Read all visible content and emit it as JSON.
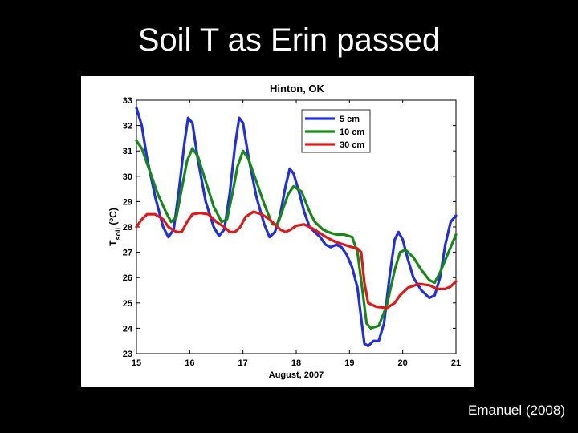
{
  "slide": {
    "title": "Soil T as Erin passed",
    "citation": "Emanuel (2008)"
  },
  "chart_data": {
    "type": "line",
    "title": "Hinton, OK",
    "xlabel": "August, 2007",
    "ylabel": {
      "main": "T",
      "subscript": "soil",
      "units_prefix": " (",
      "units_sup": "o",
      "units_suffix": "C)"
    },
    "xlim": [
      15,
      21
    ],
    "ylim": [
      23,
      33
    ],
    "xticks": [
      15,
      16,
      17,
      18,
      19,
      20,
      21
    ],
    "yticks": [
      23,
      24,
      25,
      26,
      27,
      28,
      29,
      30,
      31,
      32,
      33
    ],
    "legend_position": "top-right",
    "series": [
      {
        "name": "5 cm",
        "color": "#1f2ee6",
        "points": [
          [
            15.0,
            32.7
          ],
          [
            15.1,
            32.0
          ],
          [
            15.2,
            30.7
          ],
          [
            15.35,
            29.2
          ],
          [
            15.5,
            28.0
          ],
          [
            15.6,
            27.6
          ],
          [
            15.7,
            27.9
          ],
          [
            15.8,
            29.5
          ],
          [
            15.9,
            31.3
          ],
          [
            15.97,
            32.3
          ],
          [
            16.05,
            32.1
          ],
          [
            16.15,
            30.7
          ],
          [
            16.3,
            29.0
          ],
          [
            16.45,
            28.0
          ],
          [
            16.55,
            27.65
          ],
          [
            16.65,
            27.9
          ],
          [
            16.75,
            29.3
          ],
          [
            16.85,
            31.2
          ],
          [
            16.93,
            32.3
          ],
          [
            17.0,
            32.1
          ],
          [
            17.1,
            30.8
          ],
          [
            17.25,
            29.2
          ],
          [
            17.4,
            28.1
          ],
          [
            17.5,
            27.6
          ],
          [
            17.6,
            27.8
          ],
          [
            17.7,
            28.5
          ],
          [
            17.8,
            29.6
          ],
          [
            17.88,
            30.3
          ],
          [
            17.95,
            30.1
          ],
          [
            18.05,
            29.4
          ],
          [
            18.15,
            28.6
          ],
          [
            18.25,
            28.0
          ],
          [
            18.35,
            27.8
          ],
          [
            18.45,
            27.6
          ],
          [
            18.55,
            27.3
          ],
          [
            18.65,
            27.2
          ],
          [
            18.75,
            27.3
          ],
          [
            18.85,
            27.2
          ],
          [
            18.95,
            26.9
          ],
          [
            19.05,
            26.4
          ],
          [
            19.15,
            25.6
          ],
          [
            19.22,
            24.4
          ],
          [
            19.28,
            23.4
          ],
          [
            19.35,
            23.3
          ],
          [
            19.45,
            23.5
          ],
          [
            19.55,
            23.5
          ],
          [
            19.65,
            24.2
          ],
          [
            19.75,
            26.0
          ],
          [
            19.85,
            27.5
          ],
          [
            19.92,
            27.8
          ],
          [
            20.0,
            27.5
          ],
          [
            20.1,
            26.7
          ],
          [
            20.2,
            26.0
          ],
          [
            20.35,
            25.5
          ],
          [
            20.5,
            25.2
          ],
          [
            20.6,
            25.3
          ],
          [
            20.7,
            26.0
          ],
          [
            20.8,
            27.3
          ],
          [
            20.9,
            28.2
          ],
          [
            21.0,
            28.45
          ]
        ]
      },
      {
        "name": "10 cm",
        "color": "#148a14",
        "points": [
          [
            15.0,
            31.4
          ],
          [
            15.1,
            31.1
          ],
          [
            15.25,
            30.2
          ],
          [
            15.4,
            29.3
          ],
          [
            15.55,
            28.6
          ],
          [
            15.65,
            28.2
          ],
          [
            15.75,
            28.4
          ],
          [
            15.85,
            29.5
          ],
          [
            15.95,
            30.6
          ],
          [
            16.05,
            31.1
          ],
          [
            16.15,
            30.8
          ],
          [
            16.3,
            29.8
          ],
          [
            16.45,
            28.8
          ],
          [
            16.6,
            28.2
          ],
          [
            16.7,
            28.3
          ],
          [
            16.8,
            29.3
          ],
          [
            16.9,
            30.4
          ],
          [
            17.0,
            31.0
          ],
          [
            17.1,
            30.7
          ],
          [
            17.25,
            29.8
          ],
          [
            17.4,
            28.9
          ],
          [
            17.55,
            28.1
          ],
          [
            17.65,
            28.1
          ],
          [
            17.75,
            28.7
          ],
          [
            17.85,
            29.3
          ],
          [
            17.95,
            29.6
          ],
          [
            18.1,
            29.4
          ],
          [
            18.25,
            28.6
          ],
          [
            18.35,
            28.2
          ],
          [
            18.5,
            27.9
          ],
          [
            18.6,
            27.8
          ],
          [
            18.75,
            27.7
          ],
          [
            18.9,
            27.7
          ],
          [
            19.05,
            27.6
          ],
          [
            19.15,
            27.0
          ],
          [
            19.25,
            25.4
          ],
          [
            19.32,
            24.2
          ],
          [
            19.4,
            24.0
          ],
          [
            19.55,
            24.1
          ],
          [
            19.7,
            24.9
          ],
          [
            19.85,
            26.3
          ],
          [
            19.95,
            27.0
          ],
          [
            20.05,
            27.1
          ],
          [
            20.2,
            26.8
          ],
          [
            20.35,
            26.3
          ],
          [
            20.5,
            25.9
          ],
          [
            20.6,
            25.8
          ],
          [
            20.7,
            26.2
          ],
          [
            20.8,
            26.7
          ],
          [
            20.9,
            27.2
          ],
          [
            21.0,
            27.7
          ]
        ]
      },
      {
        "name": "30 cm",
        "color": "#e01818",
        "points": [
          [
            15.0,
            28.0
          ],
          [
            15.1,
            28.3
          ],
          [
            15.2,
            28.5
          ],
          [
            15.35,
            28.5
          ],
          [
            15.5,
            28.3
          ],
          [
            15.6,
            28.0
          ],
          [
            15.75,
            27.8
          ],
          [
            15.85,
            27.8
          ],
          [
            15.95,
            28.2
          ],
          [
            16.05,
            28.5
          ],
          [
            16.2,
            28.55
          ],
          [
            16.35,
            28.5
          ],
          [
            16.5,
            28.2
          ],
          [
            16.65,
            28.0
          ],
          [
            16.75,
            27.8
          ],
          [
            16.85,
            27.8
          ],
          [
            16.95,
            28.0
          ],
          [
            17.05,
            28.4
          ],
          [
            17.2,
            28.6
          ],
          [
            17.35,
            28.5
          ],
          [
            17.5,
            28.3
          ],
          [
            17.6,
            28.1
          ],
          [
            17.7,
            27.9
          ],
          [
            17.8,
            27.8
          ],
          [
            17.9,
            27.9
          ],
          [
            18.0,
            28.05
          ],
          [
            18.15,
            28.1
          ],
          [
            18.3,
            27.95
          ],
          [
            18.45,
            27.75
          ],
          [
            18.6,
            27.55
          ],
          [
            18.75,
            27.4
          ],
          [
            18.9,
            27.3
          ],
          [
            19.05,
            27.2
          ],
          [
            19.15,
            27.15
          ],
          [
            19.22,
            27.0
          ],
          [
            19.28,
            25.8
          ],
          [
            19.35,
            25.0
          ],
          [
            19.5,
            24.85
          ],
          [
            19.7,
            24.8
          ],
          [
            19.85,
            25.0
          ],
          [
            19.95,
            25.3
          ],
          [
            20.1,
            25.6
          ],
          [
            20.3,
            25.75
          ],
          [
            20.5,
            25.7
          ],
          [
            20.65,
            25.55
          ],
          [
            20.8,
            25.55
          ],
          [
            20.9,
            25.65
          ],
          [
            21.0,
            25.85
          ]
        ]
      }
    ]
  }
}
